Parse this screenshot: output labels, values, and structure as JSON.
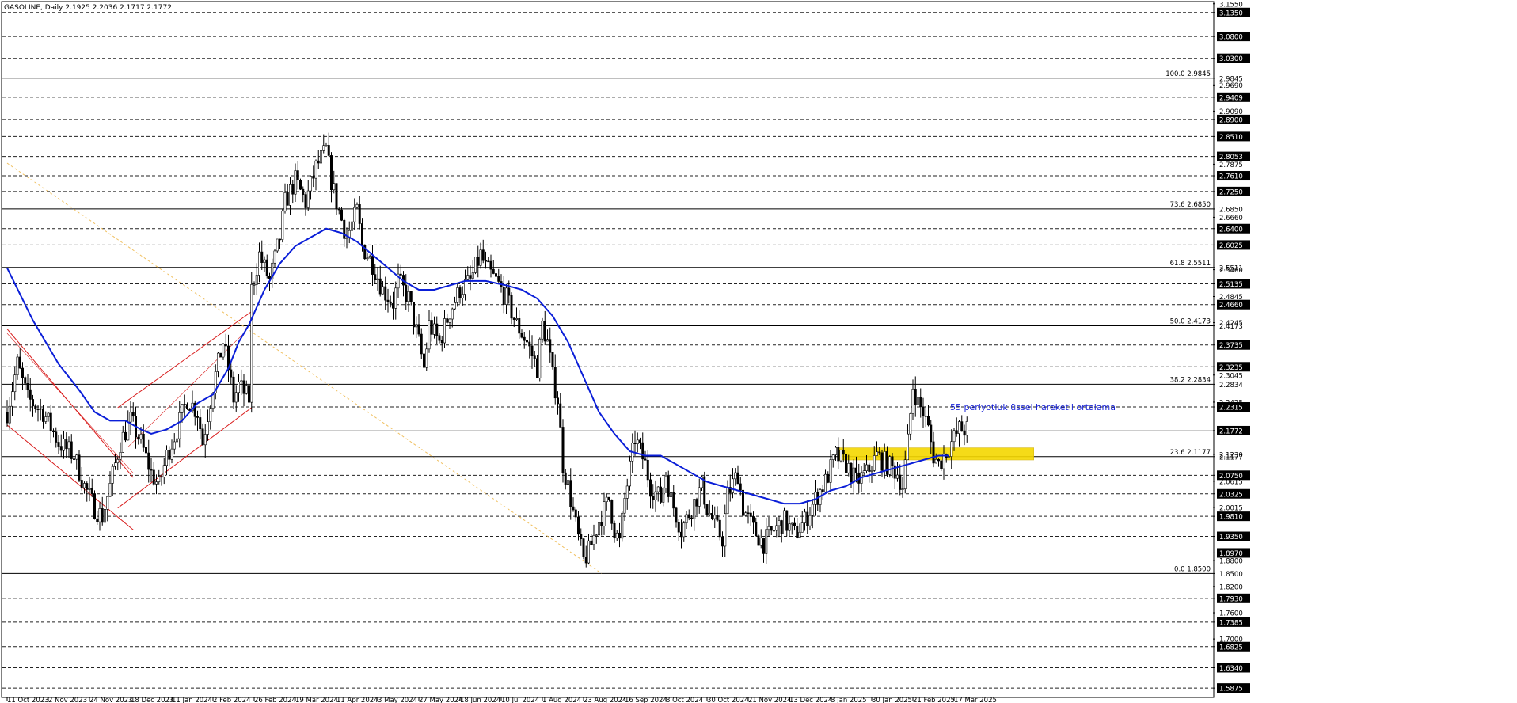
{
  "header": {
    "text": "GASOLINE, Daily  2.1925 2.2036 2.1717 2.1772"
  },
  "annotation": {
    "ema_label": "55 periyotluk üssel hareketli ortalama"
  },
  "colors": {
    "ema": "#0a1ed8",
    "channel": "#d81a1a",
    "trend": "#f0c060",
    "zone": "#f5d800",
    "grid": "#222222",
    "candle": "#000000"
  },
  "chart_data": {
    "type": "candlestick",
    "title": "GASOLINE, Daily",
    "ohlc_header": {
      "open": 2.1925,
      "high": 2.2036,
      "low": 2.1717,
      "close": 2.1772
    },
    "ylim": [
      1.566,
      3.16
    ],
    "price_labels": [
      {
        "v": 3.135,
        "t": "3.1350",
        "boxed": true
      },
      {
        "v": 3.08,
        "t": "3.0800",
        "boxed": true
      },
      {
        "v": 3.03,
        "t": "3.0300",
        "boxed": true
      },
      {
        "v": 2.9845,
        "t": "2.9845",
        "boxed": false
      },
      {
        "v": 2.969,
        "t": "2.9690",
        "boxed": false
      },
      {
        "v": 2.9409,
        "t": "2.9409",
        "boxed": true
      },
      {
        "v": 2.909,
        "t": "2.9090",
        "boxed": false
      },
      {
        "v": 2.89,
        "t": "2.8900",
        "boxed": true
      },
      {
        "v": 2.851,
        "t": "2.8510",
        "boxed": true
      },
      {
        "v": 2.8053,
        "t": "2.8053",
        "boxed": true
      },
      {
        "v": 2.7875,
        "t": "2.7875",
        "boxed": false
      },
      {
        "v": 2.761,
        "t": "2.7610",
        "boxed": true
      },
      {
        "v": 2.725,
        "t": "2.7250",
        "boxed": true
      },
      {
        "v": 2.685,
        "t": "2.6850",
        "boxed": false
      },
      {
        "v": 2.666,
        "t": "2.6660",
        "boxed": false
      },
      {
        "v": 2.64,
        "t": "2.6400",
        "boxed": true
      },
      {
        "v": 2.6025,
        "t": "2.6025",
        "boxed": true
      },
      {
        "v": 2.5511,
        "t": "2.5511",
        "boxed": false
      },
      {
        "v": 2.546,
        "t": "2.5460",
        "boxed": false
      },
      {
        "v": 2.5135,
        "t": "2.5135",
        "boxed": true
      },
      {
        "v": 2.4845,
        "t": "2.4845",
        "boxed": false
      },
      {
        "v": 2.466,
        "t": "2.4660",
        "boxed": true
      },
      {
        "v": 2.4173,
        "t": "2.4173",
        "boxed": false
      },
      {
        "v": 2.4245,
        "t": "2.4245",
        "boxed": false
      },
      {
        "v": 2.3735,
        "t": "2.3735",
        "boxed": true
      },
      {
        "v": 2.3235,
        "t": "2.3235",
        "boxed": true
      },
      {
        "v": 2.3045,
        "t": "2.3045",
        "boxed": false
      },
      {
        "v": 2.2834,
        "t": "2.2834",
        "boxed": false
      },
      {
        "v": 2.2425,
        "t": "2.2425",
        "boxed": false
      },
      {
        "v": 2.2315,
        "t": "2.2315",
        "boxed": true
      },
      {
        "v": 2.1772,
        "t": "2.1772",
        "boxed": true
      },
      {
        "v": 2.1177,
        "t": "2.1177",
        "boxed": false
      },
      {
        "v": 2.123,
        "t": "2.1230",
        "boxed": false
      },
      {
        "v": 2.075,
        "t": "2.0750",
        "boxed": true
      },
      {
        "v": 2.0615,
        "t": "2.0615",
        "boxed": false
      },
      {
        "v": 2.0325,
        "t": "2.0325",
        "boxed": true
      },
      {
        "v": 2.0015,
        "t": "2.0015",
        "boxed": false
      },
      {
        "v": 1.981,
        "t": "1.9810",
        "boxed": true
      },
      {
        "v": 1.935,
        "t": "1.9350",
        "boxed": true
      },
      {
        "v": 1.897,
        "t": "1.8970",
        "boxed": true
      },
      {
        "v": 1.88,
        "t": "1.8800",
        "boxed": false
      },
      {
        "v": 1.85,
        "t": "1.8500",
        "boxed": false
      },
      {
        "v": 1.82,
        "t": "1.8200",
        "boxed": false
      },
      {
        "v": 1.793,
        "t": "1.7930",
        "boxed": true
      },
      {
        "v": 1.76,
        "t": "1.7600",
        "boxed": false
      },
      {
        "v": 1.7385,
        "t": "1.7385",
        "boxed": true
      },
      {
        "v": 1.7,
        "t": "1.7000",
        "boxed": false
      },
      {
        "v": 1.6825,
        "t": "1.6825",
        "boxed": true
      },
      {
        "v": 1.634,
        "t": "1.6340",
        "boxed": true
      },
      {
        "v": 1.5875,
        "t": "1.5875",
        "boxed": true
      },
      {
        "v": 3.155,
        "t": "3.1550",
        "boxed": false
      }
    ],
    "dashed_levels": [
      3.135,
      3.08,
      3.03,
      2.9409,
      2.89,
      2.851,
      2.8053,
      2.761,
      2.725,
      2.64,
      2.6025,
      2.5135,
      2.466,
      2.3735,
      2.3235,
      2.2315,
      2.075,
      2.0325,
      1.981,
      1.935,
      1.897,
      1.793,
      1.7385,
      1.6825,
      1.634,
      1.5875
    ],
    "fib_levels": [
      {
        "pct": "100.0",
        "v": 2.9845
      },
      {
        "pct": "73.6",
        "v": 2.685
      },
      {
        "pct": "61.8",
        "v": 2.5511
      },
      {
        "pct": "50.0",
        "v": 2.4173
      },
      {
        "pct": "38.2",
        "v": 2.2834
      },
      {
        "pct": "23.6",
        "v": 2.1177
      },
      {
        "pct": "0.0",
        "v": 1.85
      }
    ],
    "price_line": 2.1772,
    "x_labels": [
      {
        "bar": 0,
        "t": "11 Oct 2023"
      },
      {
        "bar": 16,
        "t": "2 Nov 2023"
      },
      {
        "bar": 32,
        "t": "24 Nov 2023"
      },
      {
        "bar": 48,
        "t": "18 Dec 2023"
      },
      {
        "bar": 64,
        "t": "11 Jan 2024"
      },
      {
        "bar": 80,
        "t": "2 Feb 2024"
      },
      {
        "bar": 96,
        "t": "26 Feb 2024"
      },
      {
        "bar": 112,
        "t": "19 Mar 2024"
      },
      {
        "bar": 128,
        "t": "11 Apr 2024"
      },
      {
        "bar": 144,
        "t": "3 May 2024"
      },
      {
        "bar": 160,
        "t": "27 May 2024"
      },
      {
        "bar": 176,
        "t": "18 Jun 2024"
      },
      {
        "bar": 192,
        "t": "10 Jul 2024"
      },
      {
        "bar": 208,
        "t": "1 Aug 2024"
      },
      {
        "bar": 224,
        "t": "23 Aug 2024"
      },
      {
        "bar": 240,
        "t": "16 Sep 2024"
      },
      {
        "bar": 256,
        "t": "8 Oct 2024"
      },
      {
        "bar": 272,
        "t": "30 Oct 2024"
      },
      {
        "bar": 288,
        "t": "21 Nov 2024"
      },
      {
        "bar": 304,
        "t": "13 Dec 2024"
      },
      {
        "bar": 320,
        "t": "8 Jan 2025"
      },
      {
        "bar": 336,
        "t": "30 Jan 2025"
      },
      {
        "bar": 352,
        "t": "21 Feb 2025"
      },
      {
        "bar": 368,
        "t": "17 Mar 2025"
      }
    ],
    "price_path": [
      [
        0,
        2.22
      ],
      [
        4,
        2.33
      ],
      [
        8,
        2.25
      ],
      [
        14,
        2.22
      ],
      [
        20,
        2.15
      ],
      [
        26,
        2.12
      ],
      [
        30,
        2.05
      ],
      [
        34,
        2.0
      ],
      [
        37,
        1.98
      ],
      [
        40,
        2.05
      ],
      [
        44,
        2.15
      ],
      [
        48,
        2.2
      ],
      [
        52,
        2.15
      ],
      [
        56,
        2.08
      ],
      [
        59,
        2.05
      ],
      [
        62,
        2.12
      ],
      [
        66,
        2.18
      ],
      [
        70,
        2.25
      ],
      [
        74,
        2.22
      ],
      [
        76,
        2.15
      ],
      [
        80,
        2.28
      ],
      [
        84,
        2.38
      ],
      [
        86,
        2.32
      ],
      [
        88,
        2.25
      ],
      [
        90,
        2.28
      ],
      [
        94,
        2.25
      ],
      [
        95,
        2.5
      ],
      [
        98,
        2.58
      ],
      [
        102,
        2.52
      ],
      [
        106,
        2.62
      ],
      [
        108,
        2.7
      ],
      [
        112,
        2.75
      ],
      [
        116,
        2.7
      ],
      [
        120,
        2.78
      ],
      [
        124,
        2.82
      ],
      [
        126,
        2.75
      ],
      [
        128,
        2.7
      ],
      [
        132,
        2.62
      ],
      [
        136,
        2.68
      ],
      [
        138,
        2.6
      ],
      [
        142,
        2.56
      ],
      [
        146,
        2.5
      ],
      [
        150,
        2.47
      ],
      [
        152,
        2.52
      ],
      [
        156,
        2.48
      ],
      [
        160,
        2.38
      ],
      [
        162,
        2.32
      ],
      [
        164,
        2.42
      ],
      [
        168,
        2.38
      ],
      [
        172,
        2.45
      ],
      [
        176,
        2.5
      ],
      [
        180,
        2.52
      ],
      [
        184,
        2.58
      ],
      [
        186,
        2.55
      ],
      [
        190,
        2.52
      ],
      [
        194,
        2.48
      ],
      [
        198,
        2.42
      ],
      [
        202,
        2.38
      ],
      [
        206,
        2.32
      ],
      [
        208,
        2.42
      ],
      [
        210,
        2.38
      ],
      [
        212,
        2.3
      ],
      [
        214,
        2.25
      ],
      [
        216,
        2.1
      ],
      [
        218,
        2.05
      ],
      [
        220,
        1.99
      ],
      [
        222,
        1.93
      ],
      [
        224,
        1.88
      ],
      [
        226,
        1.9
      ],
      [
        230,
        1.97
      ],
      [
        234,
        2.02
      ],
      [
        236,
        1.95
      ],
      [
        238,
        1.92
      ],
      [
        240,
        2.02
      ],
      [
        244,
        2.16
      ],
      [
        248,
        2.1
      ],
      [
        250,
        2.05
      ],
      [
        254,
        2.02
      ],
      [
        256,
        2.08
      ],
      [
        258,
        2.02
      ],
      [
        262,
        1.95
      ],
      [
        266,
        2.0
      ],
      [
        270,
        2.05
      ],
      [
        272,
        2.0
      ],
      [
        276,
        1.95
      ],
      [
        278,
        1.93
      ],
      [
        280,
        2.03
      ],
      [
        284,
        2.08
      ],
      [
        286,
        2.0
      ],
      [
        290,
        1.95
      ],
      [
        294,
        1.92
      ],
      [
        298,
        1.95
      ],
      [
        302,
        1.97
      ],
      [
        306,
        1.94
      ],
      [
        310,
        1.97
      ],
      [
        314,
        2.02
      ],
      [
        318,
        2.06
      ],
      [
        322,
        2.12
      ],
      [
        326,
        2.1
      ],
      [
        330,
        2.06
      ],
      [
        334,
        2.08
      ],
      [
        338,
        2.12
      ],
      [
        342,
        2.1
      ],
      [
        346,
        2.08
      ],
      [
        348,
        2.05
      ],
      [
        350,
        2.15
      ],
      [
        352,
        2.28
      ],
      [
        354,
        2.24
      ],
      [
        356,
        2.22
      ],
      [
        358,
        2.18
      ],
      [
        360,
        2.12
      ],
      [
        362,
        2.1
      ],
      [
        364,
        2.12
      ],
      [
        366,
        2.14
      ],
      [
        370,
        2.18
      ],
      [
        373,
        2.18
      ]
    ],
    "ema55": [
      [
        0,
        2.55
      ],
      [
        10,
        2.43
      ],
      [
        20,
        2.33
      ],
      [
        28,
        2.27
      ],
      [
        34,
        2.22
      ],
      [
        40,
        2.2
      ],
      [
        46,
        2.2
      ],
      [
        52,
        2.18
      ],
      [
        56,
        2.17
      ],
      [
        62,
        2.18
      ],
      [
        68,
        2.2
      ],
      [
        74,
        2.24
      ],
      [
        80,
        2.26
      ],
      [
        86,
        2.32
      ],
      [
        90,
        2.38
      ],
      [
        94,
        2.42
      ],
      [
        100,
        2.5
      ],
      [
        106,
        2.56
      ],
      [
        112,
        2.6
      ],
      [
        118,
        2.62
      ],
      [
        124,
        2.64
      ],
      [
        130,
        2.63
      ],
      [
        136,
        2.61
      ],
      [
        142,
        2.58
      ],
      [
        148,
        2.55
      ],
      [
        154,
        2.52
      ],
      [
        160,
        2.5
      ],
      [
        166,
        2.5
      ],
      [
        172,
        2.51
      ],
      [
        178,
        2.52
      ],
      [
        186,
        2.52
      ],
      [
        194,
        2.51
      ],
      [
        200,
        2.5
      ],
      [
        206,
        2.48
      ],
      [
        212,
        2.44
      ],
      [
        218,
        2.38
      ],
      [
        224,
        2.3
      ],
      [
        230,
        2.22
      ],
      [
        236,
        2.17
      ],
      [
        242,
        2.13
      ],
      [
        248,
        2.12
      ],
      [
        254,
        2.12
      ],
      [
        260,
        2.1
      ],
      [
        266,
        2.08
      ],
      [
        272,
        2.06
      ],
      [
        278,
        2.05
      ],
      [
        284,
        2.04
      ],
      [
        290,
        2.03
      ],
      [
        296,
        2.02
      ],
      [
        302,
        2.01
      ],
      [
        308,
        2.01
      ],
      [
        314,
        2.02
      ],
      [
        320,
        2.04
      ],
      [
        326,
        2.05
      ],
      [
        332,
        2.07
      ],
      [
        338,
        2.08
      ],
      [
        344,
        2.09
      ],
      [
        350,
        2.1
      ],
      [
        356,
        2.11
      ],
      [
        362,
        2.12
      ],
      [
        366,
        2.12
      ]
    ]
  }
}
